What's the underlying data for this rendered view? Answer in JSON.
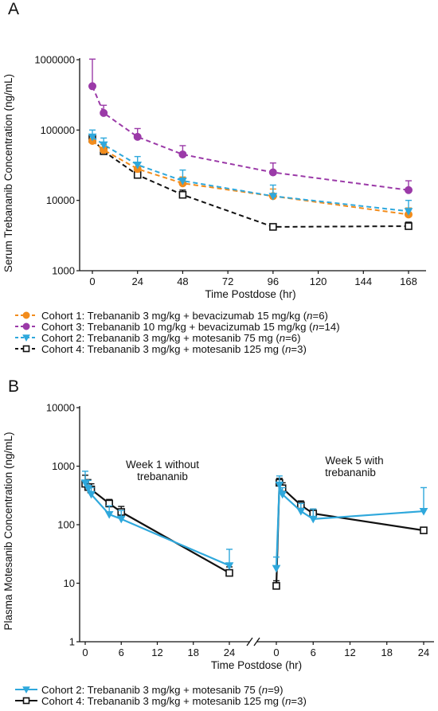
{
  "chart_data": [
    {
      "panel": "A",
      "type": "line",
      "ylabel": "Serum Trebananib Concentration (ng/mL)",
      "xlabel": "Time Postdose (hr)",
      "y_scale": "log",
      "ylim": [
        1000,
        1000000
      ],
      "xlim": [
        0,
        168
      ],
      "xticks": [
        "0",
        "24",
        "48",
        "72",
        "96",
        "120",
        "144",
        "168"
      ],
      "yticks": [
        "1000",
        "10000",
        "100000",
        "1000000"
      ],
      "legend_position": "below",
      "series": [
        {
          "name_prefix": "Cohort 1: Trebananib 3 mg/kg + bevacizumab 15 mg/kg (",
          "n_italic": "n",
          "name_suffix": "=6)",
          "color": "#f28c1c",
          "marker": "circle",
          "dash": "dashed",
          "x": [
            0,
            6,
            24,
            48,
            96,
            168
          ],
          "y": [
            70000,
            52000,
            28000,
            17500,
            11500,
            6300
          ],
          "err_up": [
            15000,
            10000,
            6000,
            4000,
            3000,
            1500
          ]
        },
        {
          "name_prefix": "Cohort 3: Trebananib 10 mg/kg + bevacizumab 15 mg/kg (",
          "n_italic": "n",
          "name_suffix": "=14)",
          "color": "#9b3aa8",
          "marker": "circle",
          "dash": "dashed",
          "x": [
            0,
            6,
            24,
            48,
            96,
            168
          ],
          "y": [
            420000,
            175000,
            80000,
            45000,
            25000,
            14000
          ],
          "err_up": [
            600000,
            50000,
            25000,
            15000,
            9000,
            5000
          ]
        },
        {
          "name_prefix": "Cohort 2: Trebananib 3 mg/kg + motesanib 75 mg (",
          "n_italic": "n",
          "name_suffix": "=6)",
          "color": "#2fa8dc",
          "marker": "triangle-down",
          "dash": "dashed",
          "x": [
            0,
            6,
            24,
            48,
            96,
            168
          ],
          "y": [
            80000,
            62000,
            32000,
            19000,
            11500,
            7000
          ],
          "err_up": [
            20000,
            15000,
            10000,
            8000,
            5000,
            3000
          ]
        },
        {
          "name_prefix": "Cohort 4: Trebananib 3 mg/kg + motesanib 125 mg (",
          "n_italic": "n",
          "name_suffix": "=3)",
          "color": "#111111",
          "marker": "square",
          "dash": "dashed",
          "x": [
            0,
            6,
            24,
            48,
            96,
            168
          ],
          "y": [
            75000,
            50000,
            23000,
            12000,
            4200,
            4300
          ],
          "err_up": [
            8000,
            6000,
            3000,
            2000,
            400,
            600
          ]
        }
      ]
    },
    {
      "panel": "B",
      "type": "line",
      "ylabel": "Plasma Motesanib Concentration (ng/mL)",
      "xlabel": "Time Postdose (hr)",
      "y_scale": "log",
      "ylim": [
        1,
        10000
      ],
      "xlim_segments": [
        [
          0,
          24
        ],
        [
          0,
          24
        ]
      ],
      "broken_x_axis": true,
      "xticks_left": [
        "0",
        "6",
        "12",
        "18",
        "24"
      ],
      "xticks_right": [
        "0",
        "6",
        "12",
        "18",
        "24"
      ],
      "yticks": [
        "1",
        "10",
        "100",
        "1000",
        "10000"
      ],
      "annotations": [
        {
          "lines": [
            "Week 1 without",
            "trebananib"
          ]
        },
        {
          "lines": [
            "Week 5 with",
            "trebananib"
          ]
        }
      ],
      "legend_position": "below",
      "series": [
        {
          "name_prefix": "Cohort 2: Trebananib 3 mg/kg + motesanib 75  (",
          "n_italic": "n",
          "name_suffix": "=9)",
          "color": "#2fa8dc",
          "marker": "triangle-down",
          "dash": "solid",
          "week1": {
            "x": [
              0,
              0.5,
              1,
              4,
              6,
              24
            ],
            "y": [
              520,
              420,
              330,
              150,
              125,
              20
            ],
            "err_up": [
              300,
              150,
              100,
              60,
              50,
              18
            ]
          },
          "week5": {
            "x": [
              0,
              0.5,
              1,
              4,
              6,
              24
            ],
            "y": [
              18,
              480,
              330,
              170,
              125,
              170
            ],
            "err_up": [
              10,
              200,
              100,
              60,
              60,
              260
            ]
          }
        },
        {
          "name_prefix": "Cohort 4: Trebananib 3 mg/kg + motesanib 125 mg (",
          "n_italic": "n",
          "name_suffix": "=3)",
          "color": "#111111",
          "marker": "square",
          "dash": "solid",
          "week1": {
            "x": [
              0,
              0.5,
              1,
              4,
              6,
              24
            ],
            "y": [
              500,
              440,
              400,
              230,
              165,
              15
            ],
            "err_up": [
              200,
              150,
              100,
              40,
              40,
              4
            ]
          },
          "week5": {
            "x": [
              0,
              0.5,
              1,
              4,
              6,
              24
            ],
            "y": [
              9,
              520,
              420,
              215,
              155,
              80
            ],
            "err_up": [
              2,
              100,
              100,
              40,
              30,
              10
            ]
          }
        }
      ]
    }
  ]
}
